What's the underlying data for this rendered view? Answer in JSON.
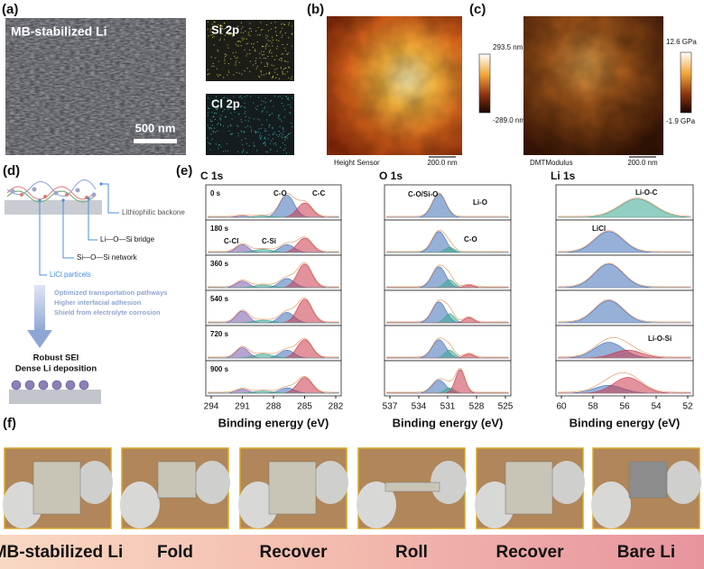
{
  "panel_a": {
    "label": "(a)",
    "image_label": "MB-stabilized Li",
    "scale_bar": "500 nm",
    "maps": [
      "Si 2p",
      "Cl 2p"
    ]
  },
  "panel_b": {
    "label": "(b)",
    "colorbar_max": "293.5 nm",
    "colorbar_min": "-289.0 nm",
    "channel": "Height Sensor",
    "scale_bar": "200.0 nm"
  },
  "panel_c": {
    "label": "(c)",
    "colorbar_max": "12.6 GPa",
    "colorbar_min": "-1.9 GPa",
    "channel": "DMTModulus",
    "scale_bar": "200.0 nm"
  },
  "panel_d": {
    "label": "(d)",
    "annotations": [
      "Lithiophilic backone",
      "Li—O—Si bridge",
      "Si—O—Si network",
      "LiCl particels"
    ],
    "benefits": [
      "Optimized transportation pathways",
      "Higher interfacial adhesion",
      "Shield from electrolyte corrosion"
    ],
    "result": [
      "Robust SEI",
      "Dense Li deposition"
    ]
  },
  "panel_e": {
    "label": "(e)",
    "times": [
      "0 s",
      "180 s",
      "360 s",
      "540 s",
      "720 s",
      "900 s"
    ],
    "x_label": "Binding energy (eV)",
    "spectra": [
      {
        "title": "C 1s",
        "xticks": [
          294,
          291,
          288,
          285,
          282
        ],
        "annotations": [
          "C-O",
          "C-C",
          "C-Cl",
          "C-Si"
        ]
      },
      {
        "title": "O 1s",
        "xticks": [
          537,
          534,
          531,
          528,
          525
        ],
        "annotations": [
          "C-O/Si-O",
          "Li-O",
          "C-O"
        ]
      },
      {
        "title": "Li 1s",
        "xticks": [
          60,
          58,
          56,
          54,
          52
        ],
        "annotations": [
          "Li-O-C",
          "LiCl",
          "Li-O-Si"
        ]
      }
    ]
  },
  "panel_f": {
    "label": "(f)",
    "steps": [
      "MB-stabilized Li",
      "Fold",
      "Recover",
      "Roll",
      "Recover",
      "Bare Li"
    ]
  }
}
